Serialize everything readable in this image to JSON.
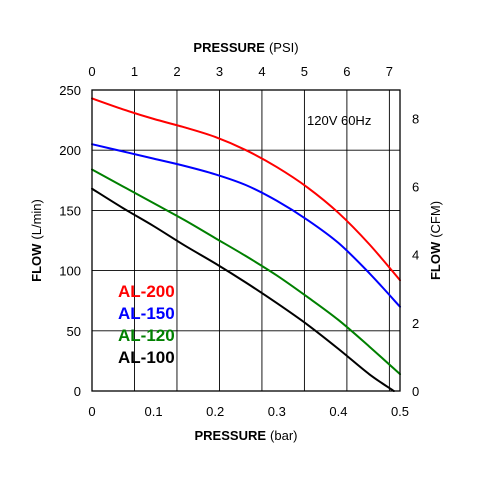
{
  "chart_data": {
    "type": "line",
    "x_bottom": {
      "label": "PRESSURE",
      "unit": "(bar)",
      "range": [
        0,
        0.5
      ],
      "ticks": [
        0,
        0.1,
        0.2,
        0.3,
        0.4,
        0.5
      ],
      "tick_labels": [
        "0",
        "0.1",
        "0.2",
        "0.3",
        "0.4",
        "0.5"
      ]
    },
    "x_top": {
      "label": "PRESSURE",
      "unit": "(PSI)",
      "range": [
        0,
        7.25
      ],
      "ticks": [
        0,
        1,
        2,
        3,
        4,
        5,
        6,
        7
      ],
      "tick_labels": [
        "0",
        "1",
        "2",
        "3",
        "4",
        "5",
        "6",
        "7"
      ]
    },
    "y_left": {
      "label": "FLOW",
      "unit": "(L/min)",
      "range": [
        0,
        250
      ],
      "ticks": [
        0,
        50,
        100,
        150,
        200,
        250
      ],
      "tick_labels": [
        "0",
        "50",
        "100",
        "150",
        "200",
        "250"
      ]
    },
    "y_right": {
      "label": "FLOW",
      "unit": "(CFM)",
      "range": [
        0,
        8.83
      ],
      "ticks": [
        0,
        2,
        4,
        6,
        8
      ],
      "tick_labels": [
        "0",
        "2",
        "4",
        "6",
        "8"
      ]
    },
    "grid": true,
    "annotation": "120V 60Hz",
    "legend_position": "bottom-left",
    "series": [
      {
        "name": "AL-200",
        "color": "#ff0000",
        "x": [
          0,
          0.05,
          0.1,
          0.15,
          0.2,
          0.25,
          0.3,
          0.35,
          0.4,
          0.45,
          0.5
        ],
        "y": [
          243,
          234,
          226,
          219,
          211,
          200,
          186,
          169,
          148,
          122,
          92
        ]
      },
      {
        "name": "AL-150",
        "color": "#0000ff",
        "x": [
          0,
          0.05,
          0.1,
          0.15,
          0.2,
          0.25,
          0.3,
          0.35,
          0.4,
          0.45,
          0.5
        ],
        "y": [
          205,
          199,
          193,
          187,
          180,
          171,
          158,
          142,
          123,
          98,
          70
        ]
      },
      {
        "name": "AL-120",
        "color": "#008000",
        "x": [
          0,
          0.05,
          0.1,
          0.15,
          0.2,
          0.25,
          0.3,
          0.35,
          0.4,
          0.45,
          0.5
        ],
        "y": [
          184,
          170,
          156,
          142,
          127,
          112,
          96,
          78,
          59,
          37,
          14
        ]
      },
      {
        "name": "AL-100",
        "color": "#000000",
        "x": [
          0,
          0.05,
          0.1,
          0.15,
          0.2,
          0.25,
          0.3,
          0.35,
          0.4,
          0.45,
          0.49
        ],
        "y": [
          168,
          152,
          137,
          121,
          106,
          90,
          73,
          55,
          35,
          14,
          0
        ]
      }
    ]
  }
}
